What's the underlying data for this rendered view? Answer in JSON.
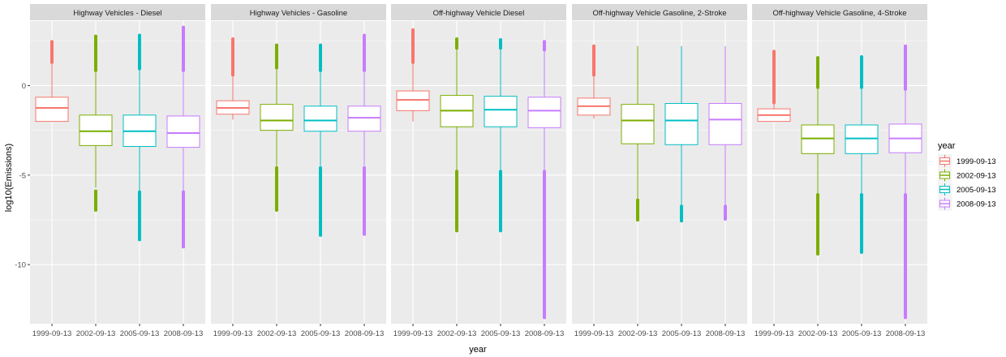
{
  "chart_data": {
    "type": "boxplot",
    "xlabel": "year",
    "ylabel": "log10(Emissions)",
    "ylim": [
      -13.3,
      3.6
    ],
    "yticks": [
      0,
      -5,
      -10
    ],
    "categories": [
      "1999-09-13",
      "2002-09-13",
      "2005-09-13",
      "2008-09-13"
    ],
    "legend": {
      "title": "year",
      "placement": "right",
      "entries": [
        "1999-09-13",
        "2002-09-13",
        "2005-09-13",
        "2008-09-13"
      ]
    },
    "colors": {
      "1999-09-13": "#F8766D",
      "2002-09-13": "#7CAE00",
      "2005-09-13": "#00BFC4",
      "2008-09-13": "#C77CFF",
      "panel_bg": "#EBEBEB",
      "strip_bg": "#D9D9D9",
      "grid": "#FFFFFF"
    },
    "grid": true,
    "facets": [
      {
        "label": "Highway Vehicles - Diesel",
        "boxes": [
          {
            "category": "1999-09-13",
            "whisker_low": -2.0,
            "q1": -2.0,
            "median": -1.25,
            "q3": -0.65,
            "whisker_high": 1.3,
            "outliers_high": [
              1.3,
              2.45
            ],
            "outliers_low": []
          },
          {
            "category": "2002-09-13",
            "whisker_low": -5.7,
            "q1": -3.35,
            "median": -2.55,
            "q3": -1.65,
            "whisker_high": 0.85,
            "outliers_high": [
              0.85,
              2.75
            ],
            "outliers_low": [
              -5.9,
              -6.95
            ]
          },
          {
            "category": "2005-09-13",
            "whisker_low": -5.95,
            "q1": -3.4,
            "median": -2.55,
            "q3": -1.65,
            "whisker_high": 0.95,
            "outliers_high": [
              0.95,
              2.8
            ],
            "outliers_low": [
              -5.95,
              -8.6
            ]
          },
          {
            "category": "2008-09-13",
            "whisker_low": -5.95,
            "q1": -3.45,
            "median": -2.65,
            "q3": -1.7,
            "whisker_high": 0.85,
            "outliers_high": [
              0.85,
              3.25
            ],
            "outliers_low": [
              -5.95,
              -9.0
            ]
          }
        ]
      },
      {
        "label": "Highway Vehicles - Gasoline",
        "boxes": [
          {
            "category": "1999-09-13",
            "whisker_low": -1.9,
            "q1": -1.6,
            "median": -1.25,
            "q3": -0.85,
            "whisker_high": 0.6,
            "outliers_high": [
              0.6,
              2.6
            ],
            "outliers_low": []
          },
          {
            "category": "2002-09-13",
            "whisker_low": -4.5,
            "q1": -2.5,
            "median": -1.95,
            "q3": -1.05,
            "whisker_high": 1.0,
            "outliers_high": [
              1.0,
              2.25
            ],
            "outliers_low": [
              -4.6,
              -6.95
            ]
          },
          {
            "category": "2005-09-13",
            "whisker_low": -4.5,
            "q1": -2.55,
            "median": -1.95,
            "q3": -1.15,
            "whisker_high": 0.85,
            "outliers_high": [
              0.85,
              2.25
            ],
            "outliers_low": [
              -4.6,
              -8.35
            ]
          },
          {
            "category": "2008-09-13",
            "whisker_low": -4.5,
            "q1": -2.55,
            "median": -1.8,
            "q3": -1.15,
            "whisker_high": 0.85,
            "outliers_high": [
              0.85,
              2.8
            ],
            "outliers_low": [
              -4.6,
              -8.3
            ]
          }
        ]
      },
      {
        "label": "Off-highway Vehicle Diesel",
        "boxes": [
          {
            "category": "1999-09-13",
            "whisker_low": -2.0,
            "q1": -1.4,
            "median": -0.8,
            "q3": -0.3,
            "whisker_high": 1.3,
            "outliers_high": [
              1.3,
              3.1
            ],
            "outliers_low": []
          },
          {
            "category": "2002-09-13",
            "whisker_low": -4.8,
            "q1": -2.3,
            "median": -1.4,
            "q3": -0.55,
            "whisker_high": 2.1,
            "outliers_high": [
              2.1,
              2.6
            ],
            "outliers_low": [
              -4.8,
              -8.1
            ]
          },
          {
            "category": "2005-09-13",
            "whisker_low": -4.8,
            "q1": -2.3,
            "median": -1.35,
            "q3": -0.6,
            "whisker_high": 2.1,
            "outliers_high": [
              2.1,
              2.55
            ],
            "outliers_low": [
              -4.8,
              -8.1
            ]
          },
          {
            "category": "2008-09-13",
            "whisker_low": -4.8,
            "q1": -2.35,
            "median": -1.4,
            "q3": -0.65,
            "whisker_high": 2.0,
            "outliers_high": [
              2.0,
              2.45
            ],
            "outliers_low": [
              -4.8,
              -8.2,
              -12.95
            ]
          }
        ]
      },
      {
        "label": "Off-highway Vehicle Gasoline, 2-Stroke",
        "boxes": [
          {
            "category": "1999-09-13",
            "whisker_low": -1.85,
            "q1": -1.65,
            "median": -1.15,
            "q3": -0.7,
            "whisker_high": 0.6,
            "outliers_high": [
              0.6,
              2.2
            ],
            "outliers_low": []
          },
          {
            "category": "2002-09-13",
            "whisker_low": -6.4,
            "q1": -3.25,
            "median": -1.95,
            "q3": -1.05,
            "whisker_high": 2.2,
            "outliers_high": [],
            "outliers_low": [
              -6.4,
              -7.5
            ]
          },
          {
            "category": "2005-09-13",
            "whisker_low": -6.75,
            "q1": -3.3,
            "median": -1.95,
            "q3": -1.0,
            "whisker_high": 2.2,
            "outliers_high": [],
            "outliers_low": [
              -6.75,
              -7.55
            ]
          },
          {
            "category": "2008-09-13",
            "whisker_low": -6.75,
            "q1": -3.3,
            "median": -1.9,
            "q3": -1.0,
            "whisker_high": 2.2,
            "outliers_high": [],
            "outliers_low": [
              -6.75,
              -7.45
            ]
          }
        ]
      },
      {
        "label": "Off-highway Vehicle Gasoline, 4-Stroke",
        "boxes": [
          {
            "category": "1999-09-13",
            "whisker_low": -2.0,
            "q1": -2.0,
            "median": -1.65,
            "q3": -1.3,
            "whisker_high": -0.95,
            "outliers_high": [
              -0.95,
              1.9
            ],
            "outliers_low": []
          },
          {
            "category": "2002-09-13",
            "whisker_low": -6.1,
            "q1": -3.8,
            "median": -2.95,
            "q3": -2.2,
            "whisker_high": -0.1,
            "outliers_high": [
              -0.1,
              1.55
            ],
            "outliers_low": [
              -6.1,
              -9.4
            ]
          },
          {
            "category": "2005-09-13",
            "whisker_low": -6.1,
            "q1": -3.8,
            "median": -2.95,
            "q3": -2.2,
            "whisker_high": -0.1,
            "outliers_high": [
              -0.1,
              1.6
            ],
            "outliers_low": [
              -6.1,
              -9.3
            ]
          },
          {
            "category": "2008-09-13",
            "whisker_low": -6.1,
            "q1": -3.75,
            "median": -2.95,
            "q3": -2.15,
            "whisker_high": -0.2,
            "outliers_high": [
              -0.2,
              2.2
            ],
            "outliers_low": [
              -6.1,
              -12.95
            ]
          }
        ]
      }
    ]
  }
}
